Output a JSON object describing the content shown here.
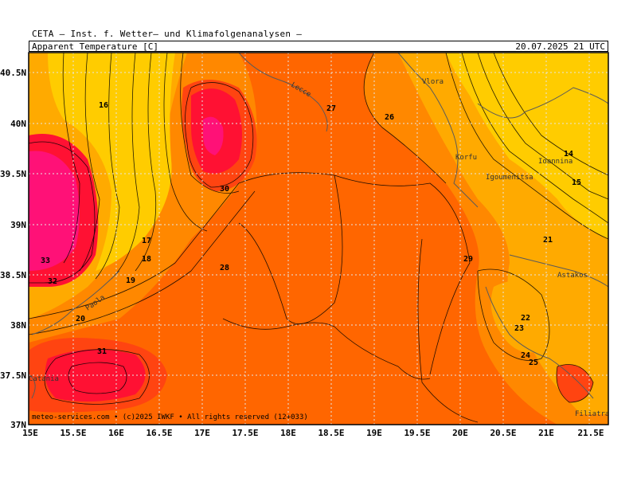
{
  "header": {
    "institution": "CETA — Inst. f. Wetter— und Klimafolgenanalysen —",
    "parameter": "Apparent_Temperature [C]",
    "valid_time": "20.07.2025 21 UTC"
  },
  "footer": "meteo-services.com • (c)2025 IWKF • All rights reserved (12+033)",
  "axes": {
    "lat_labels": [
      "40.5N",
      "40N",
      "39.5N",
      "39N",
      "38.5N",
      "38N",
      "37.5N",
      "37N"
    ],
    "lon_labels": [
      "15E",
      "15.5E",
      "16E",
      "16.5E",
      "17E",
      "17.5E",
      "18E",
      "18.5E",
      "19E",
      "19.5E",
      "20E",
      "20.5E",
      "21E",
      "21.5E"
    ]
  },
  "place_names": [
    "Lecce",
    "Vlora",
    "Korfu",
    "Igoumenitsa",
    "Ioannina",
    "Astakos",
    "Filiatra",
    "Paola",
    "Catania"
  ],
  "contour_labels": [
    "16",
    "17",
    "18",
    "19",
    "20",
    "21",
    "22",
    "23",
    "24",
    "25",
    "26",
    "27",
    "28",
    "29",
    "30",
    "31",
    "32",
    "33",
    "14",
    "15"
  ],
  "colors": {
    "t_14_20": "#ffcc00",
    "t_20_24": "#ffaa00",
    "t_24_27": "#ff8800",
    "t_27_29": "#ff6600",
    "t_29_31": "#ff4411",
    "t_31_33": "#ff1133",
    "t_33_plus": "#ff1177",
    "land_fill": "#ffcc00",
    "coast": "#5a5a5a",
    "grid": "#dddddd"
  }
}
